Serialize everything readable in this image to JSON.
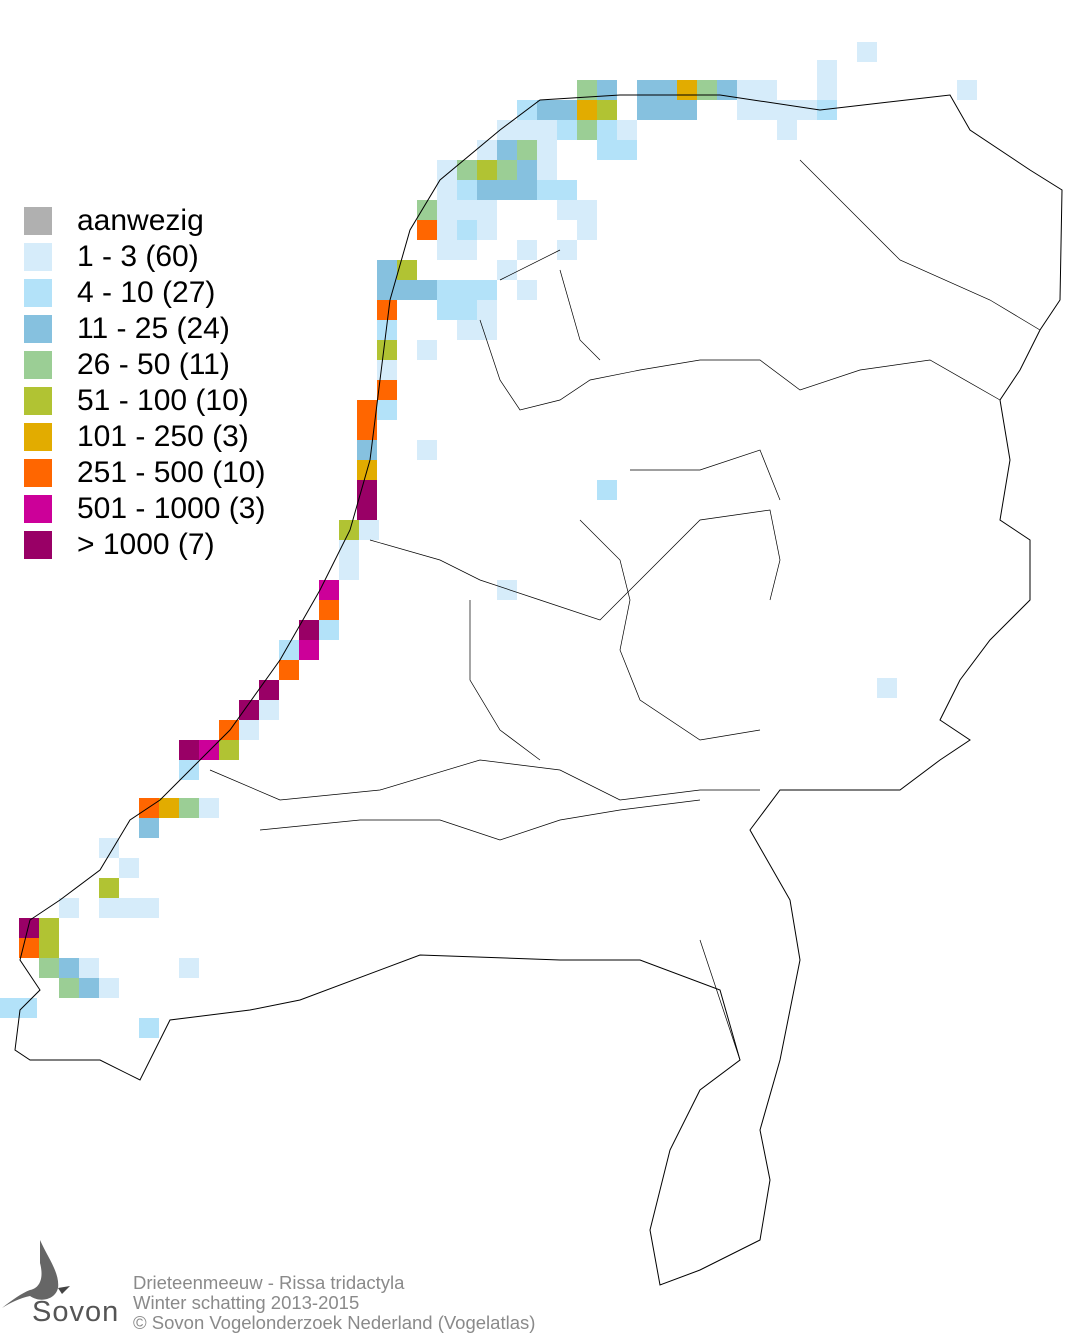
{
  "legend": [
    {
      "label": "aanwezig",
      "color": "#b0b0b0"
    },
    {
      "label": "1 - 3 (60)",
      "color": "#d6ecfa"
    },
    {
      "label": "4 - 10 (27)",
      "color": "#b3e2f9"
    },
    {
      "label": "11 - 25 (24)",
      "color": "#86c1df"
    },
    {
      "label": "26 - 50 (11)",
      "color": "#9bce95"
    },
    {
      "label": "51 - 100 (10)",
      "color": "#b1c333"
    },
    {
      "label": "101 - 250 (3)",
      "color": "#e2ac00"
    },
    {
      "label": "251 - 500 (10)",
      "color": "#ff6600"
    },
    {
      "label": "501 - 1000 (3)",
      "color": "#cc0099"
    },
    {
      "label": "> 1000 (7)",
      "color": "#990066"
    }
  ],
  "footer": {
    "species": "Drieteenmeeuw - Rissa tridactyla",
    "period": "Winter schatting 2013-2015",
    "copyright": "© Sovon Vogelonderzoek Nederland (Vogelatlas)"
  },
  "logo": {
    "text": "Sovon"
  }
}
